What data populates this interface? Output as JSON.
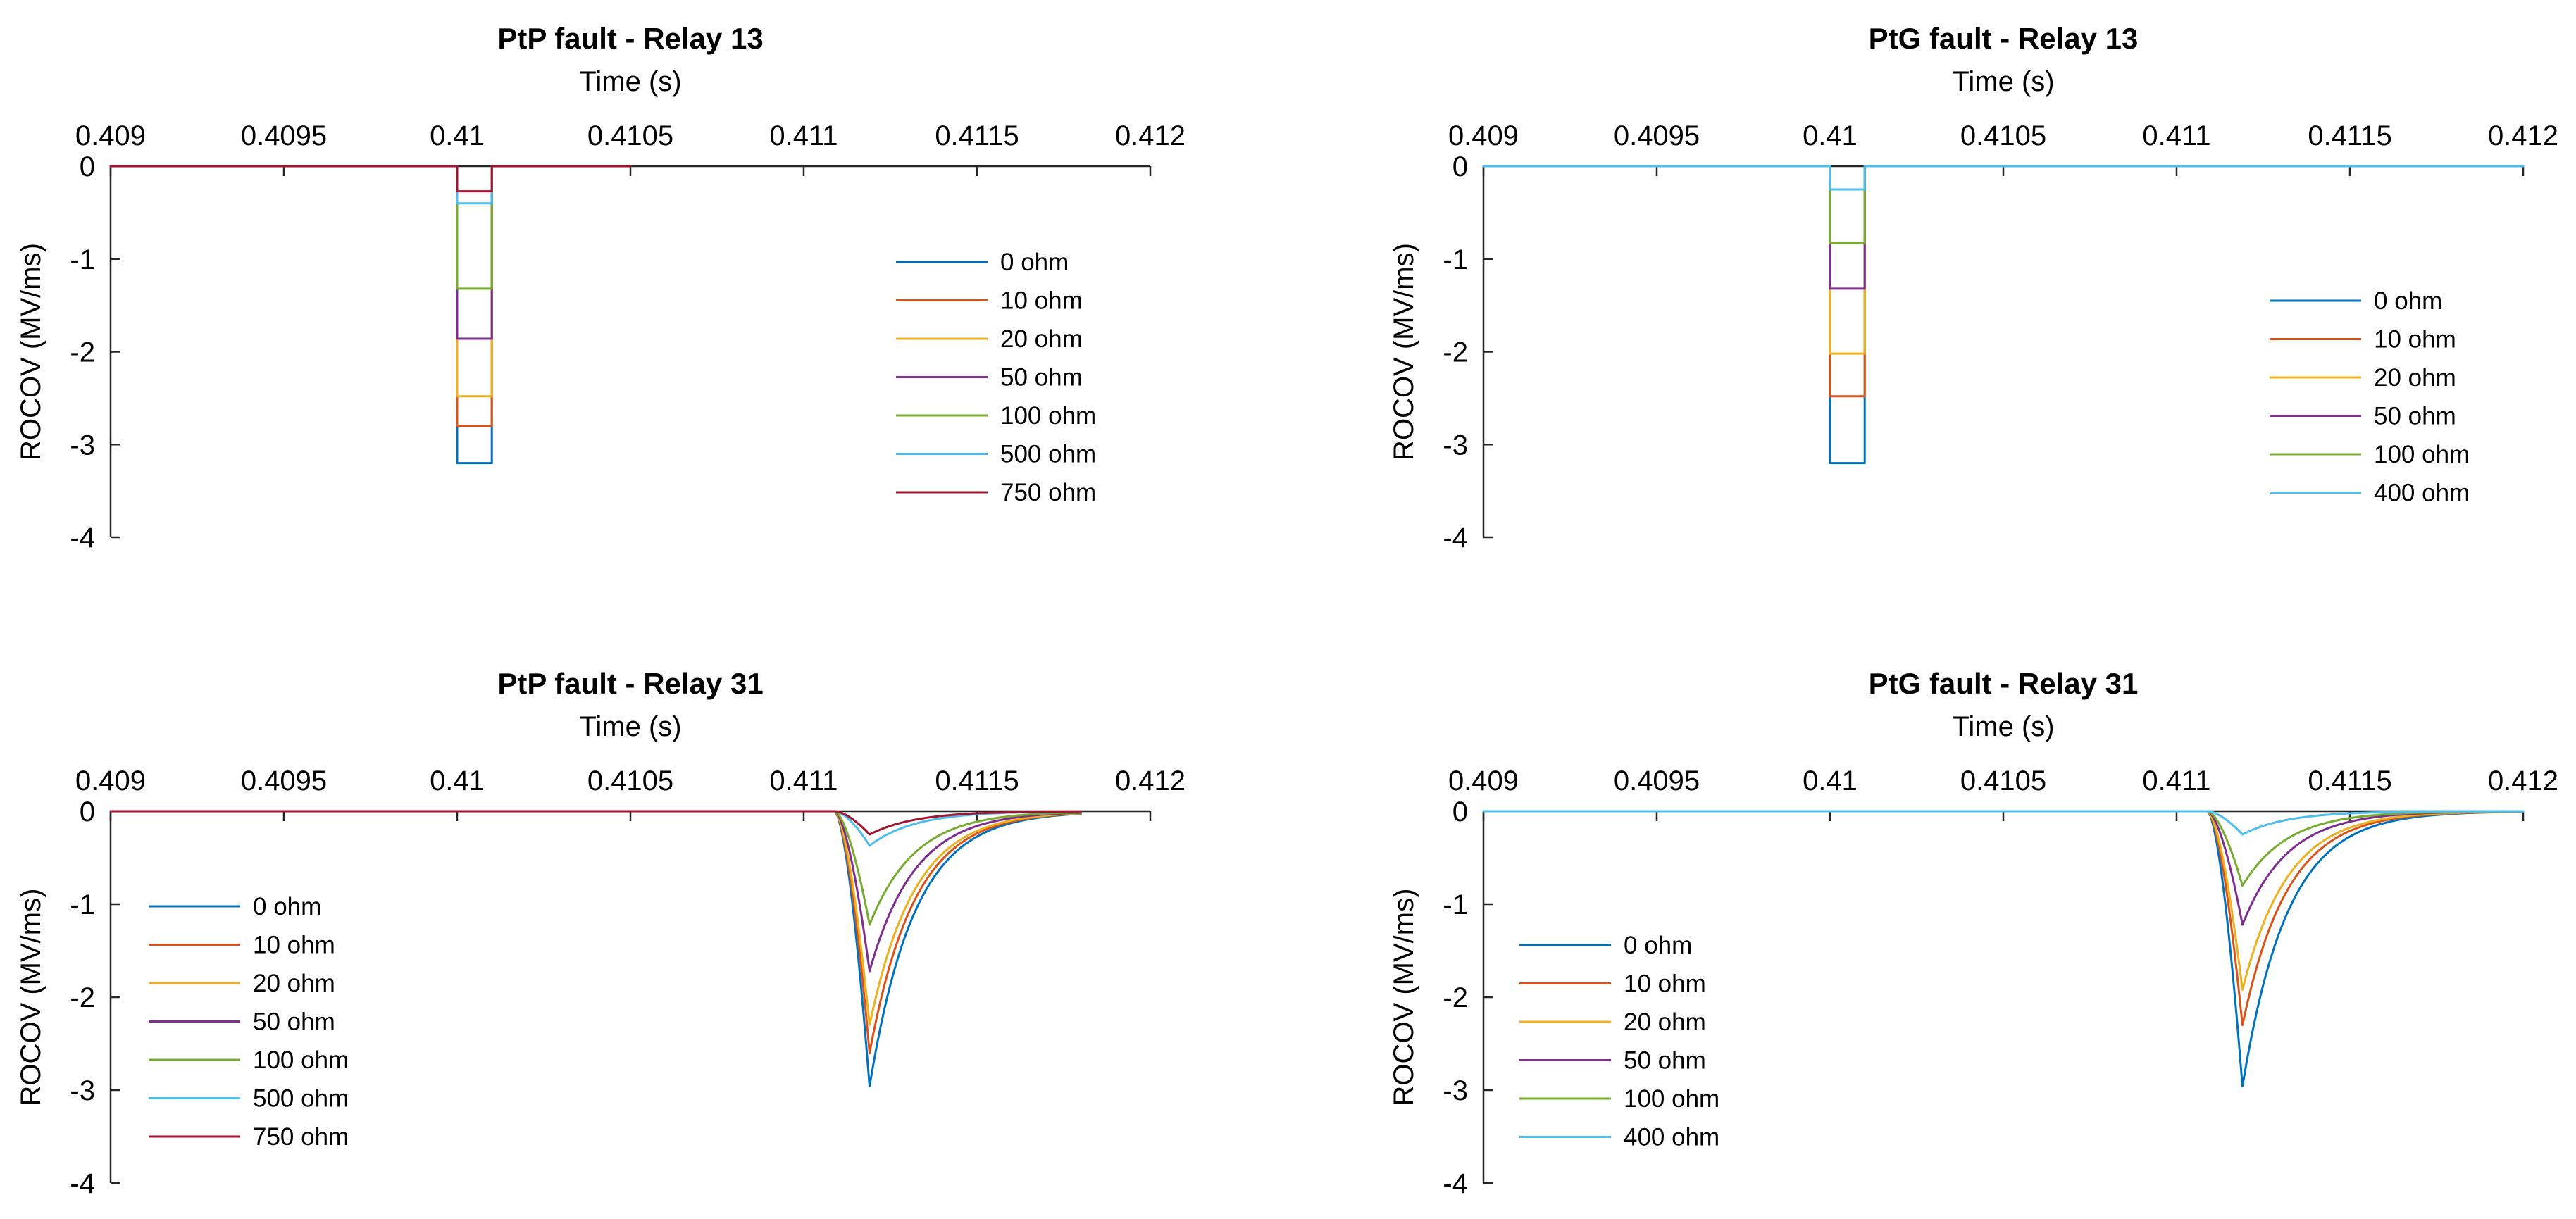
{
  "colors": {
    "c1": "#0072BD",
    "c2": "#D95319",
    "c3": "#EDB120",
    "c4": "#7E2F8E",
    "c5": "#77AC30",
    "c6": "#4DBEEE",
    "c7": "#A2142F"
  },
  "chart_data": [
    {
      "type": "line",
      "title": "PtP fault - Relay 13",
      "xlabel": "Time (s)",
      "ylabel": "ROCOV (MV/ms)",
      "xlim": [
        0.409,
        0.412
      ],
      "ylim": [
        -4,
        0
      ],
      "x_ticks": [
        "0.409",
        "0.4095",
        "0.41",
        "0.4105",
        "0.411",
        "0.4115",
        "0.412"
      ],
      "y_ticks": [
        "0",
        "-1",
        "-2",
        "-3",
        "-4"
      ],
      "legend_position": "right-middle",
      "shape": "pulse",
      "pulse_start": 0.41,
      "pulse_end": 0.4101,
      "series": [
        {
          "name": "0 ohm",
          "color": "#0072BD",
          "peak": -3.2,
          "end": 0.4105
        },
        {
          "name": "10 ohm",
          "color": "#D95319",
          "peak": -2.8,
          "end": 0.4105
        },
        {
          "name": "20 ohm",
          "color": "#EDB120",
          "peak": -2.48,
          "end": 0.4105
        },
        {
          "name": "50 ohm",
          "color": "#7E2F8E",
          "peak": -1.86,
          "end": 0.4105
        },
        {
          "name": "100 ohm",
          "color": "#77AC30",
          "peak": -1.32,
          "end": 0.4105
        },
        {
          "name": "500 ohm",
          "color": "#4DBEEE",
          "peak": -0.4,
          "end": 0.4105
        },
        {
          "name": "750 ohm",
          "color": "#A2142F",
          "peak": -0.27,
          "end": 0.4105
        }
      ]
    },
    {
      "type": "line",
      "title": "PtG fault - Relay 13",
      "xlabel": "Time (s)",
      "ylabel": "ROCOV (MV/ms)",
      "xlim": [
        0.409,
        0.412
      ],
      "ylim": [
        -4,
        0
      ],
      "x_ticks": [
        "0.409",
        "0.4095",
        "0.41",
        "0.4105",
        "0.411",
        "0.4115",
        "0.412"
      ],
      "y_ticks": [
        "0",
        "-1",
        "-2",
        "-3",
        "-4"
      ],
      "legend_position": "right-middle",
      "shape": "pulse",
      "pulse_start": 0.41,
      "pulse_end": 0.4101,
      "series": [
        {
          "name": "0 ohm",
          "color": "#0072BD",
          "peak": -3.2,
          "end": 0.412
        },
        {
          "name": "10 ohm",
          "color": "#D95319",
          "peak": -2.48,
          "end": 0.412
        },
        {
          "name": "20 ohm",
          "color": "#EDB120",
          "peak": -2.02,
          "end": 0.412
        },
        {
          "name": "50 ohm",
          "color": "#7E2F8E",
          "peak": -1.32,
          "end": 0.412
        },
        {
          "name": "100 ohm",
          "color": "#77AC30",
          "peak": -0.83,
          "end": 0.412
        },
        {
          "name": "400 ohm",
          "color": "#4DBEEE",
          "peak": -0.25,
          "end": 0.412
        }
      ]
    },
    {
      "type": "line",
      "title": "PtP fault - Relay 31",
      "xlabel": "Time (s)",
      "ylabel": "ROCOV (MV/ms)",
      "xlim": [
        0.409,
        0.412
      ],
      "ylim": [
        -4,
        0
      ],
      "x_ticks": [
        "0.409",
        "0.4095",
        "0.41",
        "0.4105",
        "0.411",
        "0.4115",
        "0.412"
      ],
      "y_ticks": [
        "0",
        "-1",
        "-2",
        "-3",
        "-4"
      ],
      "legend_position": "left-middle",
      "shape": "spike",
      "onset": 0.41109,
      "peak_time": 0.41119,
      "series": [
        {
          "name": "0 ohm",
          "color": "#0072BD",
          "peak": -2.96,
          "end": 0.4118
        },
        {
          "name": "10 ohm",
          "color": "#D95319",
          "peak": -2.6,
          "end": 0.4118
        },
        {
          "name": "20 ohm",
          "color": "#EDB120",
          "peak": -2.3,
          "end": 0.4118
        },
        {
          "name": "50 ohm",
          "color": "#7E2F8E",
          "peak": -1.72,
          "end": 0.4118
        },
        {
          "name": "100 ohm",
          "color": "#77AC30",
          "peak": -1.22,
          "end": 0.4118
        },
        {
          "name": "500 ohm",
          "color": "#4DBEEE",
          "peak": -0.37,
          "end": 0.4118
        },
        {
          "name": "750 ohm",
          "color": "#A2142F",
          "peak": -0.25,
          "end": 0.4118
        }
      ]
    },
    {
      "type": "line",
      "title": "PtG fault - Relay 31",
      "xlabel": "Time (s)",
      "ylabel": "ROCOV (MV/ms)",
      "xlim": [
        0.409,
        0.412
      ],
      "ylim": [
        -4,
        0
      ],
      "x_ticks": [
        "0.409",
        "0.4095",
        "0.41",
        "0.4105",
        "0.411",
        "0.4115",
        "0.412"
      ],
      "y_ticks": [
        "0",
        "-1",
        "-2",
        "-3",
        "-4"
      ],
      "legend_position": "left-middle",
      "shape": "spike",
      "onset": 0.41109,
      "peak_time": 0.41119,
      "series": [
        {
          "name": "0 ohm",
          "color": "#0072BD",
          "peak": -2.96,
          "end": 0.412
        },
        {
          "name": "10 ohm",
          "color": "#D95319",
          "peak": -2.3,
          "end": 0.412
        },
        {
          "name": "20 ohm",
          "color": "#EDB120",
          "peak": -1.92,
          "end": 0.412
        },
        {
          "name": "50 ohm",
          "color": "#7E2F8E",
          "peak": -1.22,
          "end": 0.412
        },
        {
          "name": "100 ohm",
          "color": "#77AC30",
          "peak": -0.8,
          "end": 0.412
        },
        {
          "name": "400 ohm",
          "color": "#4DBEEE",
          "peak": -0.25,
          "end": 0.412
        }
      ]
    }
  ]
}
